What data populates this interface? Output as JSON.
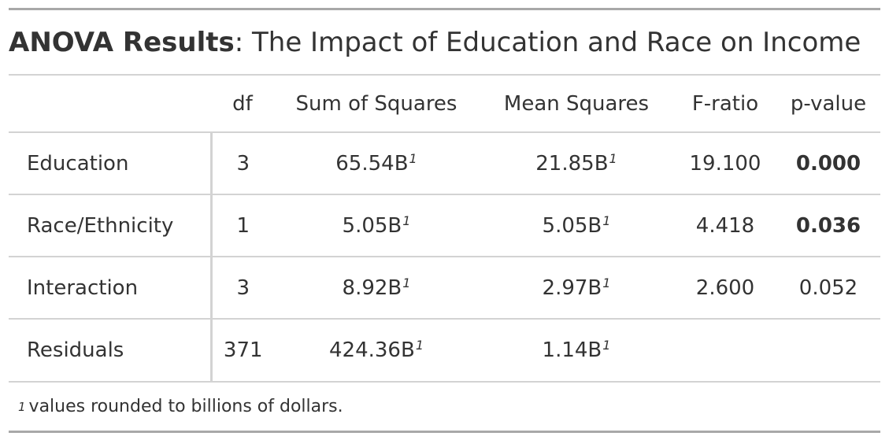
{
  "title": {
    "bold": "ANOVA Results",
    "rest": ": The Impact of Education and Race on Income"
  },
  "columns": [
    "",
    "df",
    "Sum of Squares",
    "Mean Squares",
    "F-ratio",
    "p-value"
  ],
  "rows": [
    {
      "term": "Education",
      "df": "3",
      "ss": "65.54B",
      "ms": "21.85B",
      "f": "19.100",
      "p": "0.000",
      "p_bold": true
    },
    {
      "term": "Race/Ethnicity",
      "df": "1",
      "ss": "5.05B",
      "ms": "5.05B",
      "f": "4.418",
      "p": "0.036",
      "p_bold": true
    },
    {
      "term": "Interaction",
      "df": "3",
      "ss": "8.92B",
      "ms": "2.97B",
      "f": "2.600",
      "p": "0.052",
      "p_bold": false
    },
    {
      "term": "Residuals",
      "df": "371",
      "ss": "424.36B",
      "ms": "1.14B",
      "f": "",
      "p": "",
      "p_bold": false
    }
  ],
  "footnote_mark": "1",
  "footnote": "values rounded to billions of dollars."
}
